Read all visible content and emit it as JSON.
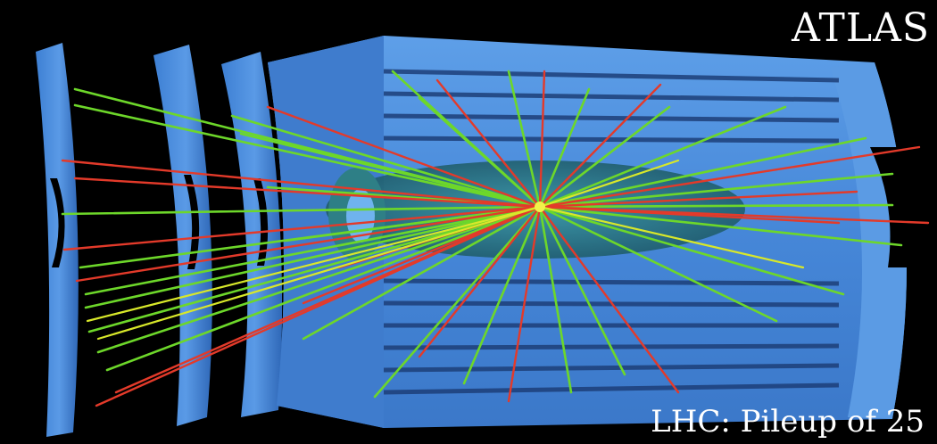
{
  "overlay": {
    "brand": "ATLAS",
    "caption": "LHC: Pileup of 25"
  },
  "scene": {
    "subject": "detector-event-display",
    "colors": {
      "background": "#000000",
      "detector": "#4a8fe0",
      "detector_shadow": "#2e66b5",
      "detector_highlight": "#7fb3f0",
      "inner_detector": "#2e7f86",
      "track_primary": "#6dd72a",
      "track_secondary": "#e33a2a",
      "track_accent": "#d8e82a",
      "text": "#ffffff"
    }
  }
}
